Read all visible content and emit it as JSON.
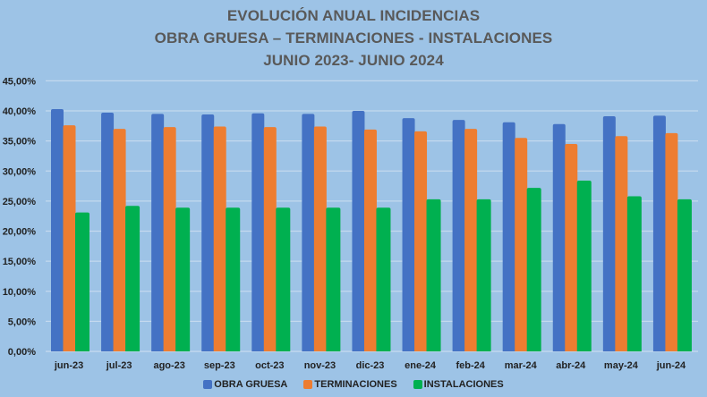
{
  "chart_data": {
    "type": "bar",
    "title": [
      "EVOLUCIÓN ANUAL INCIDENCIAS",
      "OBRA GRUESA – TERMINACIONES - INSTALACIONES",
      "JUNIO 2023- JUNIO 2024"
    ],
    "xlabel": "",
    "ylabel": "",
    "ylim": [
      0,
      45
    ],
    "yticks": [
      0,
      5,
      10,
      15,
      20,
      25,
      30,
      35,
      40,
      45
    ],
    "ytick_labels": [
      "0,00%",
      "5,00%",
      "10,00%",
      "15,00%",
      "20,00%",
      "25,00%",
      "30,00%",
      "35,00%",
      "40,00%",
      "45,00%"
    ],
    "grid": true,
    "legend_position": "bottom",
    "categories": [
      "jun-23",
      "jul-23",
      "ago-23",
      "sep-23",
      "oct-23",
      "nov-23",
      "dic-23",
      "ene-24",
      "feb-24",
      "mar-24",
      "abr-24",
      "may-24",
      "jun-24"
    ],
    "series": [
      {
        "name": "OBRA GRUESA",
        "color": "#4472C4",
        "values": [
          40.3,
          39.7,
          39.5,
          39.4,
          39.6,
          39.5,
          40.0,
          38.8,
          38.5,
          38.1,
          37.8,
          39.1,
          39.2
        ]
      },
      {
        "name": "TERMINACIONES",
        "color": "#ED7D31",
        "values": [
          37.6,
          37.0,
          37.3,
          37.4,
          37.3,
          37.4,
          36.9,
          36.6,
          37.0,
          35.5,
          34.5,
          35.8,
          36.3
        ]
      },
      {
        "name": "INSTALACIONES",
        "color": "#00B050",
        "values": [
          23.1,
          24.2,
          23.9,
          23.9,
          23.9,
          23.9,
          23.9,
          25.3,
          25.3,
          27.2,
          28.4,
          25.8,
          25.3
        ]
      }
    ]
  }
}
